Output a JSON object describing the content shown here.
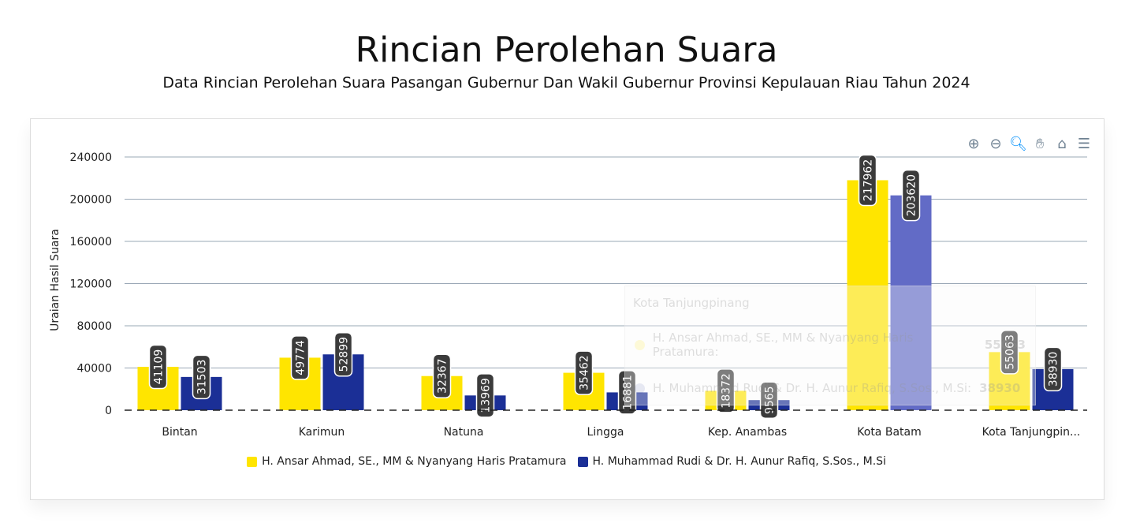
{
  "title": "Rincian Perolehan Suara",
  "subtitle": "Data Rincian Perolehan Suara Pasangan Gubernur Dan Wakil Gubernur Provinsi Kepulauan Riau Tahun 2024",
  "toolbar": {
    "icons": [
      "zoom-in-icon",
      "zoom-out-icon",
      "selection-zoom-icon",
      "pan-hand-icon",
      "home-reset-icon",
      "menu-icon"
    ]
  },
  "tooltip": {
    "title": "Kota Tanjungpinang",
    "rows": [
      {
        "name": "H. Ansar Ahmad, SE., MM & Nyanyang Haris Pratamura:",
        "value": "55063"
      },
      {
        "name": "H. Muhammad Rudi & Dr. H. Aunur Rafiq, S.Sos., M.Si:",
        "value": "38930"
      }
    ]
  },
  "chart_data": {
    "type": "bar",
    "title": "",
    "ylabel": "Uraian Hasil Suara",
    "xlabel": "",
    "ylim": [
      0,
      240000
    ],
    "yticks": [
      0,
      40000,
      80000,
      120000,
      160000,
      200000,
      240000
    ],
    "grid": true,
    "legend": "bottom",
    "categories": [
      "Bintan",
      "Karimun",
      "Natuna",
      "Lingga",
      "Kep. Anambas",
      "Kota Batam",
      "Kota Tanjungpin..."
    ],
    "series": [
      {
        "name": "H. Ansar Ahmad, SE., MM & Nyanyang Haris Pratamura",
        "color": "#ffe500",
        "values": [
          41109,
          49774,
          32367,
          35462,
          18372,
          217962,
          55063
        ]
      },
      {
        "name": "H. Muhammad Rudi & Dr. H. Aunur Rafiq, S.Sos., M.Si",
        "color": "#1b2f96",
        "values": [
          31503,
          52899,
          13969,
          16881,
          9565,
          203620,
          38930
        ]
      }
    ]
  }
}
